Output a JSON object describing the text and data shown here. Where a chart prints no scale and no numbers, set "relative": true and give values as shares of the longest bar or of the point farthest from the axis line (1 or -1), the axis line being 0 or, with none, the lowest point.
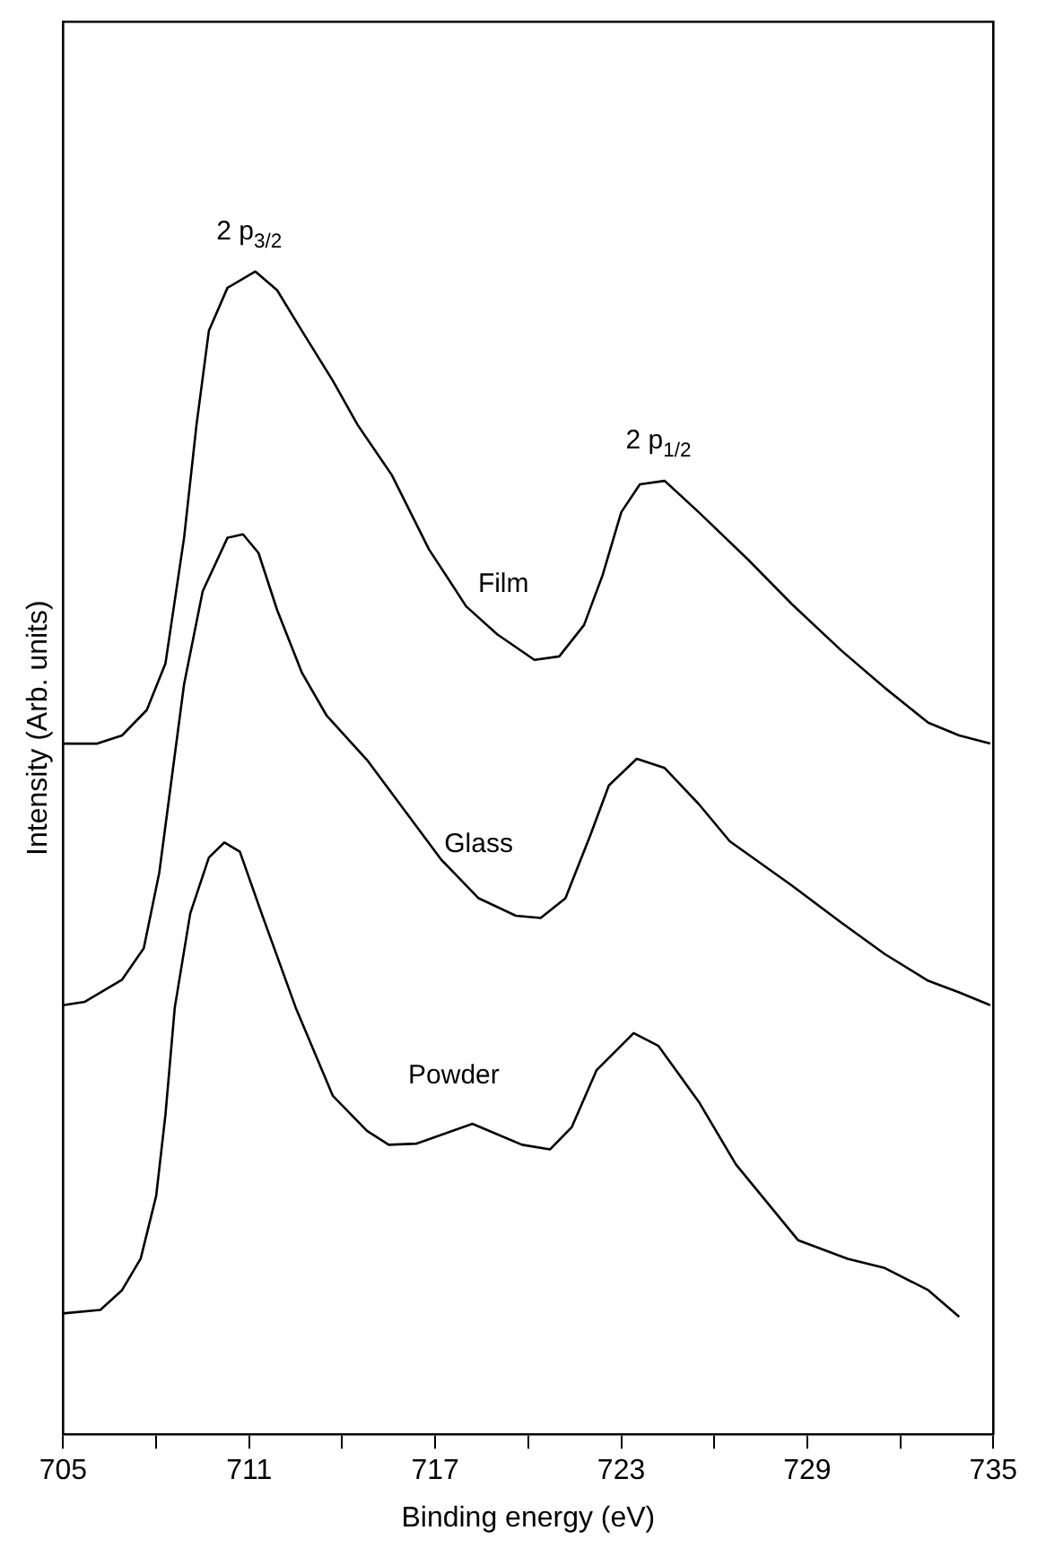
{
  "chart_data": {
    "type": "line",
    "relative": true,
    "xlabel": "Binding energy (eV)",
    "ylabel": "Intensity (Arb. units)",
    "xlim": [
      705,
      735
    ],
    "xticks": [
      705,
      {
        "value": 708,
        "label": null
      },
      711,
      {
        "value": 714,
        "label": null
      },
      717,
      {
        "value": 720,
        "label": null
      },
      723,
      {
        "value": 726,
        "label": null
      },
      729,
      {
        "value": 732,
        "label": null
      },
      735
    ],
    "grid": false,
    "legend": false,
    "marker": "none",
    "line_style": "solid",
    "annotations": [
      "2 p$_{3/2}$",
      "2 p$_{1/2}$"
    ],
    "series": [
      {
        "name": "Film",
        "color": "#000000",
        "x": [
          705.0,
          706.1,
          706.9,
          707.7,
          708.3,
          708.9,
          709.3,
          709.7,
          710.3,
          711.2,
          711.9,
          712.7,
          713.7,
          714.5,
          715.6,
          716.8,
          718.0,
          719.0,
          720.2,
          721.0,
          721.8,
          722.4,
          723.0,
          723.6,
          724.4,
          725.5,
          727.1,
          728.5,
          730.1,
          731.5,
          732.9,
          733.9,
          734.9
        ],
        "values": [
          0.594,
          0.594,
          0.601,
          0.623,
          0.663,
          0.771,
          0.868,
          0.949,
          0.986,
          1.0,
          0.984,
          0.949,
          0.906,
          0.868,
          0.825,
          0.761,
          0.712,
          0.688,
          0.666,
          0.669,
          0.696,
          0.739,
          0.793,
          0.817,
          0.82,
          0.793,
          0.752,
          0.714,
          0.674,
          0.642,
          0.612,
          0.601,
          0.594
        ]
      },
      {
        "name": "Glass",
        "color": "#000000",
        "x": [
          705.0,
          705.7,
          706.9,
          707.6,
          708.1,
          708.5,
          708.9,
          709.5,
          710.3,
          710.8,
          711.3,
          711.9,
          712.7,
          713.5,
          714.8,
          716.0,
          717.2,
          718.4,
          719.6,
          720.4,
          721.2,
          722.0,
          722.6,
          723.5,
          724.4,
          725.5,
          726.5,
          728.5,
          730.1,
          731.5,
          732.9,
          733.9,
          734.9
        ],
        "values": [
          0.369,
          0.372,
          0.391,
          0.418,
          0.483,
          0.564,
          0.645,
          0.725,
          0.771,
          0.774,
          0.758,
          0.709,
          0.655,
          0.618,
          0.58,
          0.537,
          0.494,
          0.461,
          0.446,
          0.444,
          0.461,
          0.515,
          0.558,
          0.581,
          0.573,
          0.542,
          0.51,
          0.472,
          0.44,
          0.413,
          0.39,
          0.38,
          0.369
        ]
      },
      {
        "name": "Powder",
        "color": "#000000",
        "x": [
          705.0,
          706.2,
          706.9,
          707.5,
          708.0,
          708.3,
          708.6,
          709.1,
          709.7,
          710.2,
          710.7,
          711.4,
          712.5,
          713.7,
          714.8,
          715.5,
          716.4,
          718.2,
          719.8,
          720.7,
          721.4,
          722.2,
          723.4,
          724.2,
          725.5,
          726.7,
          728.7,
          730.3,
          731.5,
          732.9,
          733.9
        ],
        "values": [
          0.104,
          0.107,
          0.124,
          0.151,
          0.205,
          0.275,
          0.367,
          0.448,
          0.496,
          0.509,
          0.501,
          0.448,
          0.367,
          0.291,
          0.261,
          0.249,
          0.25,
          0.267,
          0.249,
          0.245,
          0.264,
          0.313,
          0.345,
          0.334,
          0.286,
          0.232,
          0.167,
          0.151,
          0.143,
          0.124,
          0.101
        ]
      }
    ]
  }
}
